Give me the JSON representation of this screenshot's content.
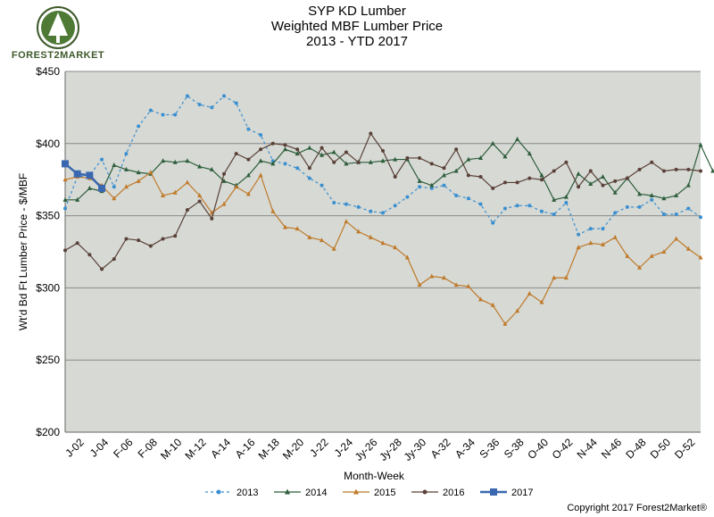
{
  "logo": {
    "brand": "FOREST2MARKET"
  },
  "titles": [
    "SYP KD Lumber",
    "Weighted MBF Lumber Price",
    "2013 - YTD 2017"
  ],
  "copyright": "Copyright 2017 Forest2Market®",
  "colors": {
    "2013": "#3a8fd0",
    "2014": "#2e5e3c",
    "2015": "#c07a2a",
    "2016": "#5a4038",
    "2017": "#3a68b0",
    "plot_bg": "#d6d9d4",
    "grid": "#8a8a8a"
  },
  "chart_data": {
    "type": "line",
    "title": "SYP KD Lumber Weighted MBF Lumber Price 2013 - YTD 2017",
    "xlabel": "Month-Week",
    "ylabel": "Wt'd Bd Ft Lumber Price - $/MBF",
    "ylim": [
      200,
      450
    ],
    "yticks": [
      "$200",
      "$250",
      "$300",
      "$350",
      "$400",
      "$450"
    ],
    "xtick_labels": [
      "J-02",
      "J-04",
      "F-06",
      "F-08",
      "M-10",
      "M-12",
      "A-14",
      "A-16",
      "M-18",
      "M-20",
      "J-22",
      "J-24",
      "Jy-26",
      "Jy-28",
      "Jy-30",
      "A-32",
      "A-34",
      "S-36",
      "S-38",
      "O-40",
      "O-42",
      "N-44",
      "N-46",
      "D-48",
      "D-50",
      "D-52"
    ],
    "grid": true,
    "legend": "bottom",
    "series": [
      {
        "name": "2013",
        "style": "dashed",
        "marker": "circle",
        "values": [
          355,
          377,
          378,
          389,
          370,
          393,
          412,
          423,
          420,
          420,
          433,
          427,
          425,
          433,
          428,
          410,
          406,
          388,
          386,
          383,
          376,
          371,
          359,
          358,
          356,
          353,
          352,
          357,
          363,
          370,
          369,
          371,
          364,
          362,
          358,
          345,
          355,
          357,
          357,
          353,
          351,
          359,
          337,
          341,
          341,
          352,
          356,
          356,
          361,
          351,
          351,
          355,
          349
        ]
      },
      {
        "name": "2014",
        "style": "solid",
        "marker": "triangle",
        "values": [
          361,
          361,
          369,
          367,
          385,
          382,
          380,
          379,
          388,
          387,
          388,
          384,
          382,
          374,
          371,
          378,
          388,
          386,
          396,
          393,
          397,
          392,
          394,
          386,
          387,
          387,
          388,
          389,
          389,
          374,
          371,
          378,
          381,
          389,
          390,
          400,
          391,
          403,
          393,
          378,
          361,
          363,
          379,
          372,
          377,
          366,
          376,
          365,
          364,
          362,
          364,
          371,
          399,
          381
        ]
      },
      {
        "name": "2015",
        "style": "solid",
        "marker": "triangle",
        "values": [
          375,
          377,
          376,
          371,
          362,
          370,
          374,
          380,
          364,
          366,
          373,
          364,
          352,
          358,
          370,
          365,
          378,
          353,
          342,
          341,
          335,
          333,
          327,
          346,
          339,
          335,
          331,
          328,
          321,
          302,
          308,
          307,
          302,
          301,
          292,
          288,
          275,
          284,
          296,
          290,
          307,
          307,
          328,
          331,
          330,
          335,
          322,
          314,
          322,
          325,
          334,
          327,
          321
        ]
      },
      {
        "name": "2016",
        "style": "solid",
        "marker": "circle",
        "values": [
          326,
          331,
          323,
          313,
          320,
          334,
          333,
          329,
          334,
          336,
          354,
          360,
          348,
          379,
          393,
          389,
          396,
          400,
          399,
          396,
          383,
          397,
          387,
          394,
          387,
          407,
          395,
          377,
          390,
          390,
          386,
          383,
          396,
          378,
          377,
          369,
          373,
          373,
          376,
          375,
          381,
          387,
          370,
          381,
          371,
          374,
          376,
          382,
          387,
          381,
          382,
          382,
          381
        ]
      },
      {
        "name": "2017",
        "style": "solid",
        "marker": "square",
        "values": [
          386,
          379,
          378,
          369
        ]
      }
    ]
  }
}
